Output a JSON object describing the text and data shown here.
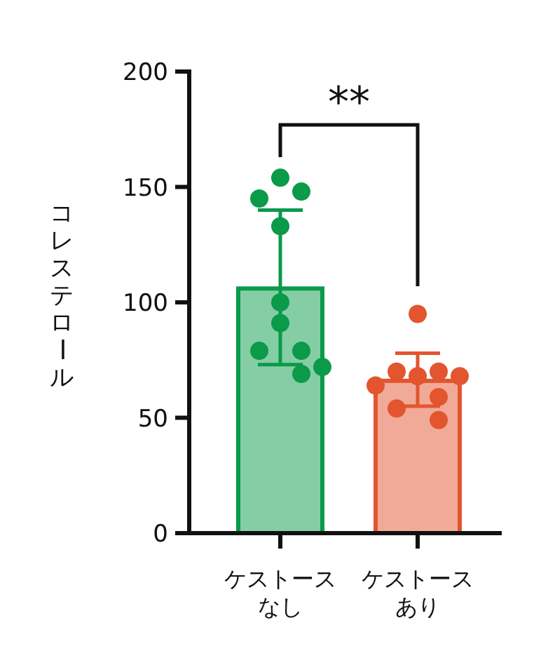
{
  "chart_data": {
    "type": "bar",
    "ylabel": "コレステロール",
    "categories": [
      "ケストースなし",
      "ケストースあり"
    ],
    "values": [
      106,
      66
    ],
    "colors": [
      "#0a9a4a",
      "#e3552f"
    ],
    "errors": [
      [
        73,
        140
      ],
      [
        55,
        78
      ]
    ],
    "series": [
      {
        "type": "scatter",
        "x": [
          "ケストースなし",
          "ケストースなし",
          "ケストースなし",
          "ケストースなし",
          "ケストースなし",
          "ケストースなし",
          "ケストースなし",
          "ケストースなし",
          "ケストースなし",
          "ケストースなし"
        ],
        "values": [
          154,
          148,
          145,
          133,
          100,
          91,
          79,
          79,
          72,
          69
        ],
        "color": "#0a9a4a",
        "marker": "circle"
      },
      {
        "type": "scatter",
        "x": [
          "ケストースあり",
          "ケストースあり",
          "ケストースあり",
          "ケストースあり",
          "ケストースあり",
          "ケストースあり",
          "ケストースあり",
          "ケストースあり",
          "ケストースあり"
        ],
        "values": [
          95,
          68,
          70,
          70,
          68,
          64,
          59,
          54,
          49
        ],
        "color": "#e3552f",
        "marker": "circle"
      }
    ],
    "ylim": [
      0,
      200
    ],
    "yticks": [
      0,
      50,
      100,
      150,
      200
    ],
    "annotations": [
      "**"
    ],
    "grid": false,
    "legend": false
  }
}
